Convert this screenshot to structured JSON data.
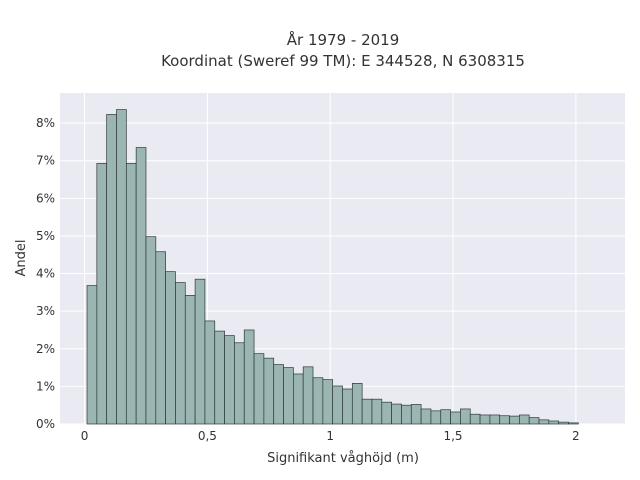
{
  "chart_data": {
    "type": "bar",
    "title": "År 1979 - 2019",
    "subtitle": "Koordinat (Sweref 99 TM): E 344528, N 6308315",
    "xlabel": "Signifikant våghöjd (m)",
    "ylabel": "Andel",
    "xlim": [
      -0.1,
      2.2
    ],
    "ylim": [
      0,
      8.8
    ],
    "x_ticks": [
      {
        "value": 0,
        "label": "0"
      },
      {
        "value": 0.5,
        "label": "0,5"
      },
      {
        "value": 1,
        "label": "1"
      },
      {
        "value": 1.5,
        "label": "1,5"
      },
      {
        "value": 2,
        "label": "2"
      }
    ],
    "y_ticks": [
      {
        "value": 0,
        "label": "0%"
      },
      {
        "value": 1,
        "label": "1%"
      },
      {
        "value": 2,
        "label": "2%"
      },
      {
        "value": 3,
        "label": "3%"
      },
      {
        "value": 4,
        "label": "4%"
      },
      {
        "value": 5,
        "label": "5%"
      },
      {
        "value": 6,
        "label": "6%"
      },
      {
        "value": 7,
        "label": "7%"
      },
      {
        "value": 8,
        "label": "8%"
      }
    ],
    "bin_start": 0.01,
    "bin_width": 0.04,
    "values": [
      3.68,
      6.93,
      8.23,
      8.36,
      6.93,
      7.35,
      4.98,
      4.58,
      4.05,
      3.76,
      3.42,
      3.85,
      2.74,
      2.47,
      2.35,
      2.16,
      2.5,
      1.87,
      1.75,
      1.58,
      1.5,
      1.33,
      1.52,
      1.23,
      1.18,
      1.01,
      0.93,
      1.08,
      0.66,
      0.66,
      0.58,
      0.53,
      0.5,
      0.52,
      0.4,
      0.35,
      0.38,
      0.32,
      0.4,
      0.26,
      0.24,
      0.24,
      0.22,
      0.21,
      0.24,
      0.17,
      0.11,
      0.08,
      0.05,
      0.03
    ],
    "grid": true,
    "colors": {
      "bar_fill": "#9bb5b3",
      "bar_stroke": "#2b3a39",
      "plot_bg": "#eaeaf2",
      "grid": "#ffffff"
    }
  }
}
